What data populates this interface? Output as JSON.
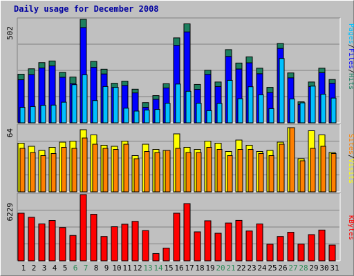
{
  "title": "Daily usage for December 2008",
  "colors": {
    "background": "#C0C0C0",
    "panel": "#C0C0C0",
    "hits": "#1D7F5F",
    "files": "#0000FF",
    "pages": "#00C0FF",
    "visits": "#FFFF00",
    "sites": "#FF8000",
    "kbytes": "#FF0000",
    "title": "#0000A0",
    "weekend_label": "#2E8B57",
    "weekday_label": "#000000"
  },
  "chart_data": [
    {
      "type": "bar",
      "name": "hits-files-pages",
      "max_label": "502",
      "ylim": [
        0,
        502
      ],
      "categories": [
        "1",
        "2",
        "3",
        "4",
        "5",
        "6",
        "7",
        "8",
        "9",
        "10",
        "11",
        "12",
        "13",
        "14",
        "15",
        "16",
        "17",
        "18",
        "19",
        "20",
        "21",
        "22",
        "23",
        "24",
        "25",
        "26",
        "27",
        "28",
        "29",
        "30",
        "31"
      ],
      "weekend_days": [
        "6",
        "7",
        "13",
        "14",
        "20",
        "21",
        "27",
        "28"
      ],
      "series": [
        {
          "name": "Hits",
          "values": [
            236,
            262,
            292,
            300,
            245,
            222,
            502,
            298,
            260,
            192,
            202,
            163,
            98,
            132,
            190,
            412,
            480,
            186,
            255,
            198,
            355,
            290,
            320,
            265,
            172,
            385,
            242,
            102,
            198,
            265,
            210
          ]
        },
        {
          "name": "Files",
          "values": [
            209,
            234,
            266,
            276,
            221,
            190,
            462,
            269,
            237,
            171,
            181,
            145,
            75,
            114,
            169,
            376,
            441,
            162,
            235,
            176,
            322,
            261,
            291,
            238,
            147,
            361,
            218,
            89,
            176,
            243,
            192
          ]
        },
        {
          "name": "Pages",
          "values": [
            75,
            79,
            85,
            86,
            100,
            185,
            233,
            108,
            176,
            172,
            71,
            57,
            62,
            65,
            95,
            188,
            153,
            95,
            59,
            94,
            206,
            117,
            175,
            136,
            69,
            312,
            116,
            97,
            178,
            139,
            120
          ]
        }
      ],
      "legend_labels": [
        "Pages",
        "/",
        "Files",
        "/",
        "Hits"
      ]
    },
    {
      "type": "bar",
      "name": "sites-visits",
      "max_label": "64",
      "ylim": [
        0,
        64
      ],
      "categories": [
        "1",
        "2",
        "3",
        "4",
        "5",
        "6",
        "7",
        "8",
        "9",
        "10",
        "11",
        "12",
        "13",
        "14",
        "15",
        "16",
        "17",
        "18",
        "19",
        "20",
        "21",
        "22",
        "23",
        "24",
        "25",
        "26",
        "27",
        "28",
        "29",
        "30",
        "31"
      ],
      "series": [
        {
          "name": "Visits",
          "values": [
            47,
            44,
            40,
            43,
            48,
            49,
            60,
            55,
            45,
            44,
            49,
            35,
            46,
            41,
            40,
            56,
            43,
            41,
            49,
            47,
            39,
            50,
            45,
            39,
            40,
            48,
            62,
            32,
            59,
            55,
            38
          ]
        },
        {
          "name": "Sites",
          "values": [
            42,
            38,
            35,
            37,
            43,
            42,
            52,
            46,
            42,
            41,
            46,
            32,
            39,
            38,
            40,
            42,
            38,
            38,
            43,
            41,
            35,
            41,
            41,
            37,
            35,
            46,
            62,
            30,
            42,
            44,
            37
          ]
        }
      ],
      "legend_labels": [
        "Sites",
        "/",
        "Visits"
      ]
    },
    {
      "type": "bar",
      "name": "kbytes",
      "max_label": "6229",
      "ylim": [
        0,
        6229
      ],
      "categories": [
        "1",
        "2",
        "3",
        "4",
        "5",
        "6",
        "7",
        "8",
        "9",
        "10",
        "11",
        "12",
        "13",
        "14",
        "15",
        "16",
        "17",
        "18",
        "19",
        "20",
        "21",
        "22",
        "23",
        "24",
        "25",
        "26",
        "27",
        "28",
        "29",
        "30",
        "31"
      ],
      "series": [
        {
          "name": "KBytes",
          "values": [
            4480,
            4094,
            3473,
            3793,
            3132,
            2385,
            6229,
            4374,
            2290,
            3207,
            3444,
            3710,
            2846,
            684,
            1196,
            4479,
            5382,
            2725,
            3766,
            2595,
            3559,
            3801,
            2806,
            3466,
            1566,
            2290,
            2690,
            1576,
            2464,
            2895,
            1486
          ]
        }
      ],
      "legend_labels": [
        "KBytes"
      ]
    }
  ]
}
